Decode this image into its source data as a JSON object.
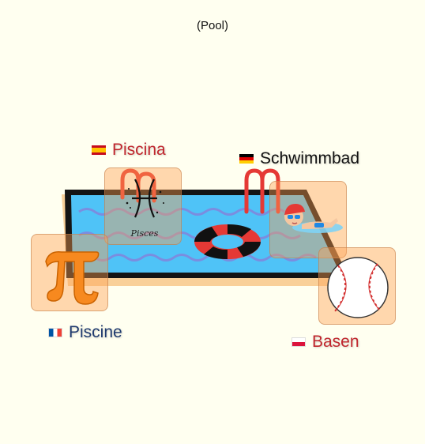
{
  "header": {
    "title": "(Pool)"
  },
  "cards": [
    {
      "id": "pisces",
      "icon": "pisces-zodiac-icon",
      "caption": "Pisces"
    },
    {
      "id": "pi",
      "icon": "pi-symbol-icon"
    },
    {
      "id": "swimmer",
      "icon": "swimmer-icon"
    },
    {
      "id": "baseball",
      "icon": "baseball-icon"
    }
  ],
  "labels": [
    {
      "id": "es",
      "flag": "spain-flag-icon",
      "word": "Piscina",
      "color": "#c0262d"
    },
    {
      "id": "de",
      "flag": "germany-flag-icon",
      "word": "Schwimmbad",
      "color": "#111111"
    },
    {
      "id": "fr",
      "flag": "france-flag-icon",
      "word": "Piscine",
      "color": "#1f3a6e"
    },
    {
      "id": "pl",
      "flag": "poland-flag-icon",
      "word": "Basen",
      "color": "#c0262d"
    }
  ],
  "colors": {
    "background": "#fffff0",
    "water": "#4fc3f7",
    "card_fill": "#ffa050",
    "pool_rim": "#111111"
  }
}
